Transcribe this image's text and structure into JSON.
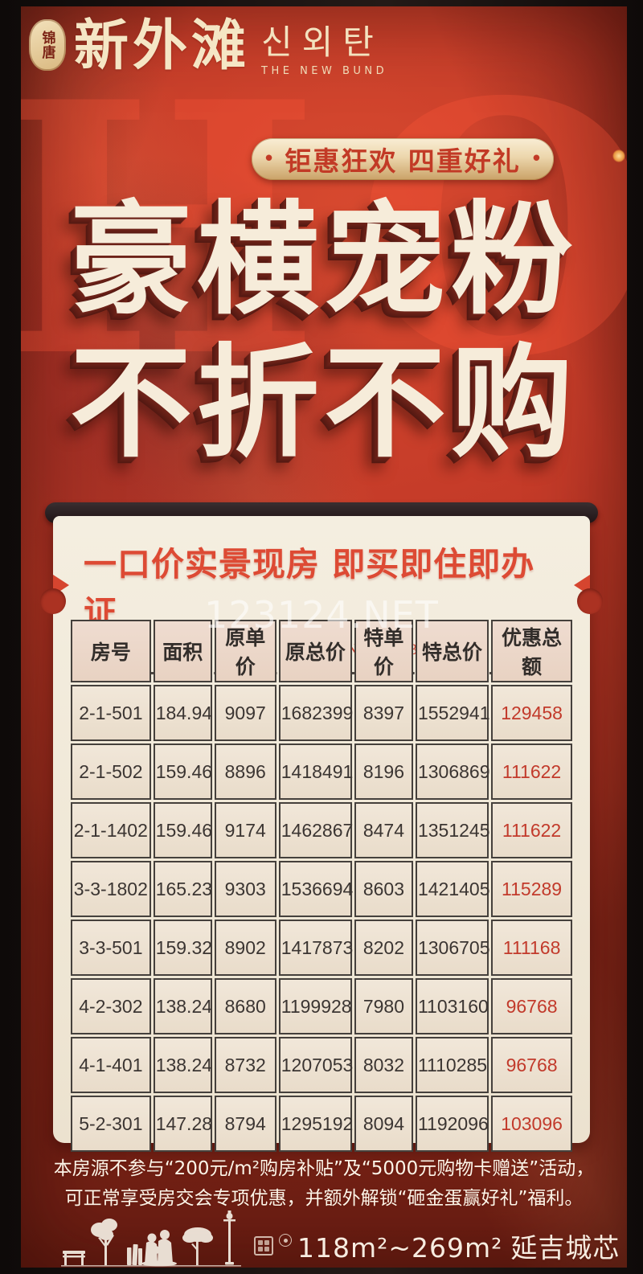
{
  "brand": {
    "seal": "锦唐",
    "name_cn": "新外滩",
    "name_kr": "신외탄",
    "name_en": "THE NEW BUND"
  },
  "hot_word": "HOT",
  "badge": {
    "bullet": "•",
    "text": "钜惠狂欢 四重好礼"
  },
  "headline": {
    "line1": "豪横宠粉",
    "line2": "不折不购"
  },
  "panel": {
    "title": "一口价实景现房 即买即住即办证",
    "subtitle": "JIN TANG THE NEW BUND",
    "watermark": "123124.NET",
    "table": {
      "headers": [
        "房号",
        "面积",
        "原单价",
        "原总价",
        "特单价",
        "特总价",
        "优惠总额"
      ],
      "rows": [
        [
          "2-1-501",
          "184.94",
          "9097",
          "1682399",
          "8397",
          "1552941",
          "129458"
        ],
        [
          "2-1-502",
          "159.46",
          "8896",
          "1418491",
          "8196",
          "1306869",
          "111622"
        ],
        [
          "2-1-1402",
          "159.46",
          "9174",
          "1462867",
          "8474",
          "1351245",
          "111622"
        ],
        [
          "3-3-1802",
          "165.23",
          "9303",
          "1536694",
          "8603",
          "1421405",
          "115289"
        ],
        [
          "3-3-501",
          "159.32",
          "8902",
          "1417873",
          "8202",
          "1306705",
          "111168"
        ],
        [
          "4-2-302",
          "138.24",
          "8680",
          "1199928",
          "7980",
          "1103160",
          "96768"
        ],
        [
          "4-1-401",
          "138.24",
          "8732",
          "1207053",
          "8032",
          "1110285",
          "96768"
        ],
        [
          "5-2-301",
          "147.28",
          "8794",
          "1295192",
          "8094",
          "1192096",
          "103096"
        ]
      ]
    }
  },
  "disclaimer": {
    "line1": "本房源不参与“200元/m²购房补贴”及“5000元购物卡赠送”活动，",
    "line2": "可正常享受房交会专项优惠，并额外解锁“砸金蛋赢好礼”福利。"
  },
  "footer": {
    "area": "118m²~269m²",
    "slogan": "延吉城芯 火爆热销"
  },
  "colors": {
    "background_red": "#c33a28",
    "frame_black": "#17110f",
    "gold": "#ecd6ac",
    "badge_text_red": "#c23a26",
    "headline_cream": "#f6ecda",
    "panel_cream": "#f0e8d7",
    "panel_title_red": "#dd4a34",
    "table_text": "#3b3532",
    "discount_red": "#c23a2b",
    "footer_text": "#f7ece0"
  }
}
